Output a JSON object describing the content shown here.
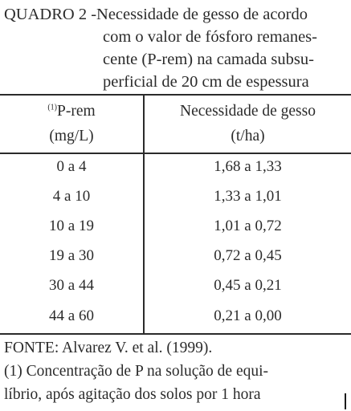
{
  "caption": {
    "label": "QUADRO 2 - ",
    "lines": [
      "Necessidade de gesso de acordo",
      "com o valor de fósforo remanes-",
      "cente (P-rem) na camada subsu-",
      "perficial de 20 cm de espessura"
    ]
  },
  "table": {
    "header": {
      "col1": {
        "footnote_mark": "(1)",
        "title": "P-rem",
        "unit": "(mg/L)"
      },
      "col2": {
        "title": "Necessidade de gesso",
        "unit": "(t/ha)"
      }
    },
    "rows": [
      {
        "p_rem": "0 a 4",
        "gesso": "1,68 a 1,33"
      },
      {
        "p_rem": "4 a 10",
        "gesso": "1,33 a 1,01"
      },
      {
        "p_rem": "10 a 19",
        "gesso": "1,01 a 0,72"
      },
      {
        "p_rem": "19 a 30",
        "gesso": "0,72 a 0,45"
      },
      {
        "p_rem": "30 a 44",
        "gesso": "0,45 a 0,21"
      },
      {
        "p_rem": "44 a 60",
        "gesso": "0,21 a 0,00"
      }
    ]
  },
  "source": "FONTE: Alvarez V. et al. (1999).",
  "footnote": {
    "lines": [
      "(1) Concentração de P na solução de equi-",
      "líbrio, após agitação dos solos por 1 hora"
    ]
  }
}
